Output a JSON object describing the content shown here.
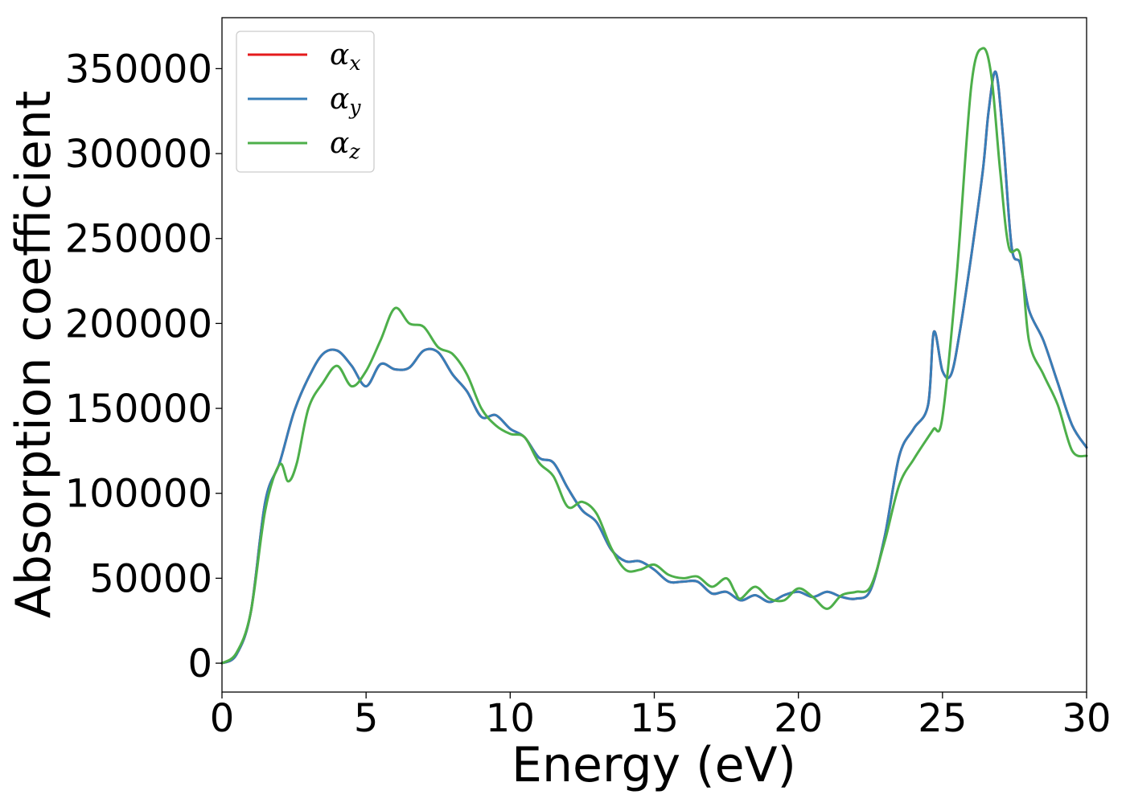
{
  "chart_data": {
    "type": "line",
    "title": "",
    "xlabel": "Energy (eV)",
    "ylabel": "Absorption coefficient",
    "xlim": [
      0,
      30
    ],
    "ylim": [
      -17000,
      380000
    ],
    "xticks": [
      0,
      5,
      10,
      15,
      20,
      25,
      30
    ],
    "yticks": [
      0,
      50000,
      100000,
      150000,
      200000,
      250000,
      300000,
      350000
    ],
    "grid": false,
    "legend": "top-left",
    "series": [
      {
        "name": "αx",
        "color": "#e41a1c",
        "x": [
          0,
          0.5,
          1.0,
          1.5,
          2.0,
          2.5,
          3.0,
          3.5,
          4.0,
          4.5,
          5.0,
          5.5,
          6.0,
          6.5,
          7.0,
          7.5,
          8.0,
          8.5,
          9.0,
          9.5,
          10.0,
          10.5,
          11.0,
          11.5,
          12.0,
          12.5,
          13.0,
          13.5,
          14.0,
          14.5,
          15.0,
          15.5,
          16.0,
          16.5,
          17.0,
          17.5,
          18.0,
          18.5,
          19.0,
          19.5,
          20.0,
          20.5,
          21.0,
          21.5,
          22.0,
          22.5,
          23.0,
          23.5,
          24.0,
          24.5,
          24.7,
          25.0,
          25.3,
          25.6,
          26.0,
          26.4,
          26.6,
          26.85,
          27.1,
          27.4,
          27.7,
          28.0,
          28.5,
          29.0,
          29.5,
          30.0
        ],
        "y": [
          0,
          5000,
          30000,
          95000,
          118000,
          148000,
          168000,
          182000,
          184000,
          175000,
          163000,
          176000,
          173000,
          174000,
          184000,
          183000,
          170000,
          160000,
          145000,
          146000,
          138000,
          133000,
          121000,
          118000,
          103000,
          90000,
          83000,
          67000,
          60000,
          60000,
          55000,
          48000,
          48000,
          48000,
          41000,
          42000,
          37000,
          40000,
          36000,
          40000,
          42000,
          39000,
          42000,
          39000,
          38000,
          43000,
          75000,
          122000,
          138000,
          152000,
          195000,
          172000,
          170000,
          195000,
          240000,
          290000,
          325000,
          348000,
          310000,
          245000,
          235000,
          208000,
          190000,
          165000,
          140000,
          127000
        ]
      },
      {
        "name": "αy",
        "color": "#377eb8",
        "x": [
          0,
          0.5,
          1.0,
          1.5,
          2.0,
          2.5,
          3.0,
          3.5,
          4.0,
          4.5,
          5.0,
          5.5,
          6.0,
          6.5,
          7.0,
          7.5,
          8.0,
          8.5,
          9.0,
          9.5,
          10.0,
          10.5,
          11.0,
          11.5,
          12.0,
          12.5,
          13.0,
          13.5,
          14.0,
          14.5,
          15.0,
          15.5,
          16.0,
          16.5,
          17.0,
          17.5,
          18.0,
          18.5,
          19.0,
          19.5,
          20.0,
          20.5,
          21.0,
          21.5,
          22.0,
          22.5,
          23.0,
          23.5,
          24.0,
          24.5,
          24.7,
          25.0,
          25.3,
          25.6,
          26.0,
          26.4,
          26.6,
          26.85,
          27.1,
          27.4,
          27.7,
          28.0,
          28.5,
          29.0,
          29.5,
          30.0
        ],
        "y": [
          0,
          5000,
          30000,
          95000,
          118000,
          148000,
          168000,
          182000,
          184000,
          175000,
          163000,
          176000,
          173000,
          174000,
          184000,
          183000,
          170000,
          160000,
          145000,
          146000,
          138000,
          133000,
          121000,
          118000,
          103000,
          90000,
          83000,
          67000,
          60000,
          60000,
          55000,
          48000,
          48000,
          48000,
          41000,
          42000,
          37000,
          40000,
          36000,
          40000,
          42000,
          39000,
          42000,
          39000,
          38000,
          43000,
          75000,
          122000,
          138000,
          152000,
          195000,
          172000,
          170000,
          195000,
          240000,
          290000,
          325000,
          348000,
          310000,
          245000,
          235000,
          208000,
          190000,
          165000,
          140000,
          127000
        ]
      },
      {
        "name": "αz",
        "color": "#4daf4a",
        "x": [
          0,
          0.5,
          1.0,
          1.5,
          2.0,
          2.3,
          2.6,
          3.0,
          3.5,
          4.0,
          4.5,
          5.0,
          5.5,
          6.0,
          6.5,
          7.0,
          7.5,
          8.0,
          8.5,
          9.0,
          9.5,
          10.0,
          10.5,
          11.0,
          11.5,
          12.0,
          12.5,
          13.0,
          13.5,
          14.0,
          14.5,
          15.0,
          15.5,
          16.0,
          16.5,
          17.0,
          17.5,
          17.8,
          18.0,
          18.5,
          19.0,
          19.5,
          20.0,
          20.5,
          21.0,
          21.5,
          22.0,
          22.5,
          23.0,
          23.5,
          24.0,
          24.5,
          24.7,
          25.0,
          25.5,
          26.0,
          26.4,
          26.7,
          27.0,
          27.3,
          27.7,
          28.0,
          28.5,
          29.0,
          29.5,
          30.0
        ],
        "y": [
          0,
          6000,
          30000,
          90000,
          117000,
          107000,
          118000,
          150000,
          165000,
          175000,
          163000,
          172000,
          190000,
          209000,
          200000,
          198000,
          186000,
          182000,
          170000,
          150000,
          140000,
          135000,
          133000,
          118000,
          110000,
          92000,
          95000,
          88000,
          68000,
          55000,
          55000,
          58000,
          52000,
          50000,
          51000,
          45000,
          50000,
          42000,
          38000,
          45000,
          38000,
          37000,
          44000,
          39000,
          32000,
          40000,
          42000,
          45000,
          72000,
          105000,
          120000,
          133000,
          138000,
          145000,
          230000,
          340000,
          362000,
          345000,
          290000,
          245000,
          240000,
          190000,
          170000,
          152000,
          125000,
          122000
        ]
      }
    ]
  }
}
